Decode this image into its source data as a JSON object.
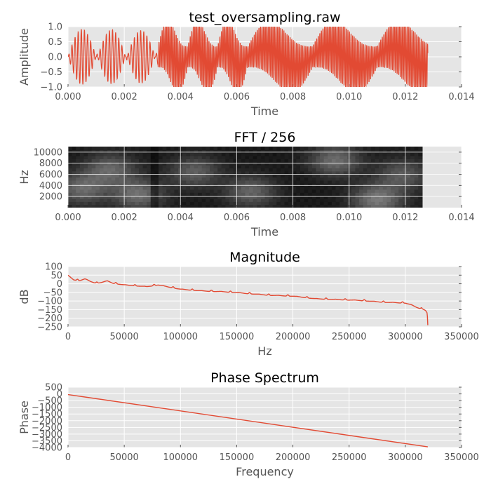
{
  "colors": {
    "line": "#E24A33",
    "panel": "#E5E5E5",
    "grid": "#FFFFFF",
    "text": "#555555"
  },
  "chart_data": [
    {
      "type": "line",
      "title": "test_oversampling.raw",
      "xlabel": "Time",
      "ylabel": "Amplitude",
      "xlim": [
        0,
        0.014
      ],
      "ylim": [
        -1.0,
        1.0
      ],
      "xticks": [
        0,
        0.002,
        0.004,
        0.006,
        0.008,
        0.01,
        0.012,
        0.014
      ],
      "xtick_labels": [
        "0.000",
        "0.002",
        "0.004",
        "0.006",
        "0.008",
        "0.010",
        "0.012",
        "0.014"
      ],
      "yticks": [
        1.0,
        0.5,
        0.0,
        -0.5,
        -1.0
      ],
      "ytick_labels": [
        "1.0",
        "0.5",
        "0.0",
        "−0.5",
        "−1.0"
      ],
      "grid": true,
      "segments": [
        {
          "t0": 0.0,
          "t1": 0.00105,
          "env_period": 0.001,
          "env_peak": 0.92,
          "carrier_hz": 9000
        },
        {
          "t0": 0.00105,
          "t1": 0.0021,
          "env_period": 0.001,
          "env_peak": 0.9,
          "carrier_hz": 9000
        },
        {
          "t0": 0.0021,
          "t1": 0.0032,
          "env_period": 0.001,
          "env_peak": 0.88,
          "carrier_hz": 9000
        },
        {
          "t0": 0.0032,
          "t1": 0.0064,
          "env_period": 0.00106,
          "env_peak": 1.0,
          "carrier_hz": 18000
        },
        {
          "t0": 0.0064,
          "t1": 0.0128,
          "env_period": 0.0023,
          "env_peak": 1.0,
          "carrier_hz": 18000
        }
      ],
      "duration": 0.0128
    },
    {
      "type": "heatmap",
      "title": "FFT / 256",
      "xlabel": "Time",
      "ylabel": "Hz",
      "xlim": [
        0,
        0.014
      ],
      "ylim": [
        0,
        11000
      ],
      "xticks": [
        0,
        0.002,
        0.004,
        0.006,
        0.008,
        0.01,
        0.012,
        0.014
      ],
      "xtick_labels": [
        "0.000",
        "0.002",
        "0.004",
        "0.006",
        "0.008",
        "0.010",
        "0.012",
        "0.014"
      ],
      "yticks": [
        2000,
        4000,
        6000,
        8000,
        10000
      ],
      "ytick_labels": [
        "2000",
        "4000",
        "6000",
        "8000",
        "10000"
      ],
      "data_extent_t": [
        0,
        0.0126
      ],
      "data_extent_hz": [
        0,
        11000
      ],
      "bright_regions": [
        {
          "t": 0.0005,
          "f": 3500,
          "level": 0.32
        },
        {
          "t": 0.0015,
          "f": 7000,
          "level": 0.3
        },
        {
          "t": 0.0025,
          "f": 2500,
          "level": 0.34
        },
        {
          "t": 0.0045,
          "f": 6500,
          "level": 0.28
        },
        {
          "t": 0.0065,
          "f": 3000,
          "level": 0.3
        },
        {
          "t": 0.0095,
          "f": 8500,
          "level": 0.33
        },
        {
          "t": 0.011,
          "f": 1500,
          "level": 0.38
        },
        {
          "t": 0.0119,
          "f": 6000,
          "level": 0.26
        }
      ],
      "grid": true
    },
    {
      "type": "line",
      "title": "Magnitude",
      "xlabel": "Hz",
      "ylabel": "dB",
      "xlim": [
        0,
        350000
      ],
      "ylim": [
        -250,
        100
      ],
      "xticks": [
        0,
        50000,
        100000,
        150000,
        200000,
        250000,
        300000,
        350000
      ],
      "xtick_labels": [
        "0",
        "50000",
        "100000",
        "150000",
        "200000",
        "250000",
        "300000",
        "350000"
      ],
      "yticks": [
        100,
        50,
        0,
        -50,
        -100,
        -150,
        -200,
        -250
      ],
      "ytick_labels": [
        "100",
        "50",
        "0",
        "−50",
        "−100",
        "−150",
        "−200",
        "−250"
      ],
      "grid": true,
      "x": [
        0,
        5000,
        10000,
        15000,
        20000,
        25000,
        30000,
        35000,
        40000,
        50000,
        60000,
        70000,
        80000,
        100000,
        120000,
        140000,
        160000,
        180000,
        200000,
        220000,
        240000,
        260000,
        280000,
        300000,
        305000,
        310000,
        315000,
        318000,
        319500,
        320000
      ],
      "y": [
        50,
        25,
        20,
        30,
        15,
        5,
        10,
        18,
        5,
        -5,
        -10,
        -15,
        -5,
        -30,
        -40,
        -45,
        -55,
        -65,
        -70,
        -85,
        -90,
        -95,
        -105,
        -110,
        -120,
        -135,
        -145,
        -155,
        -170,
        -240
      ]
    },
    {
      "type": "line",
      "title": "Phase Spectrum",
      "xlabel": "Frequency",
      "ylabel": "Phase",
      "xlim": [
        0,
        350000
      ],
      "ylim": [
        -4000,
        500
      ],
      "xticks": [
        0,
        50000,
        100000,
        150000,
        200000,
        250000,
        300000,
        350000
      ],
      "xtick_labels": [
        "0",
        "50000",
        "100000",
        "150000",
        "200000",
        "250000",
        "300000",
        "350000"
      ],
      "yticks": [
        500,
        0,
        -500,
        -1000,
        -1500,
        -2000,
        -2500,
        -3000,
        -3500,
        -4000
      ],
      "ytick_labels": [
        "500",
        "0",
        "−500",
        "−1000",
        "−1500",
        "−2000",
        "−2500",
        "−3000",
        "−3500",
        "−4000"
      ],
      "grid": true,
      "x": [
        0,
        320000
      ],
      "y": [
        -50,
        -3950
      ]
    }
  ]
}
